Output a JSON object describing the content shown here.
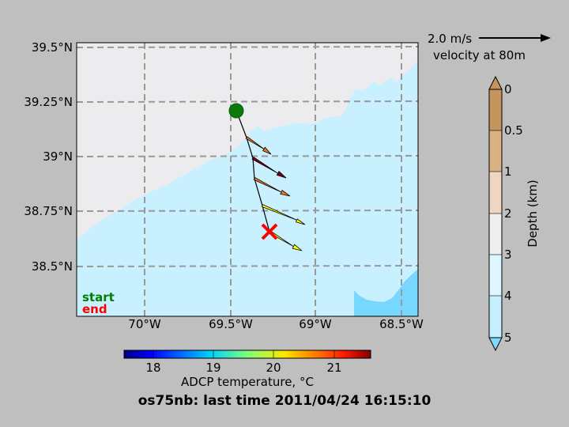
{
  "map": {
    "lat_labels": [
      "39.5°N",
      "39.25°N",
      "39°N",
      "38.75°N",
      "38.5°N"
    ],
    "lon_labels": [
      "70°W",
      "69.5°W",
      "69°W",
      "68.5°W"
    ],
    "legend_start": "start",
    "legend_end": "end",
    "colors": {
      "land": "#ececef",
      "shallow_water": "#c8f0ff",
      "deep_water": "#78d7ff",
      "start_marker": "#0b7a0b",
      "end_marker": "#ff0000",
      "start_text": "#008000",
      "end_text": "#ff0000"
    }
  },
  "scale_arrow": {
    "speed_label": "2.0 m/s",
    "depth_label": "velocity at 80m"
  },
  "depth_colorbar": {
    "title": "Depth (km)",
    "ticks": [
      "0",
      "0.5",
      "1",
      "2",
      "3",
      "4",
      "5"
    ],
    "colors": [
      "#c4965e",
      "#d9b284",
      "#f0d6c2",
      "#efefef",
      "#ddf6ff",
      "#c7f0ff",
      "#7fd9ff"
    ]
  },
  "temp_colorbar": {
    "label": "ADCP temperature, °C",
    "ticks": [
      "18",
      "19",
      "20",
      "21"
    ]
  },
  "title": "os75nb: last time 2011/04/24 16:15:10"
}
